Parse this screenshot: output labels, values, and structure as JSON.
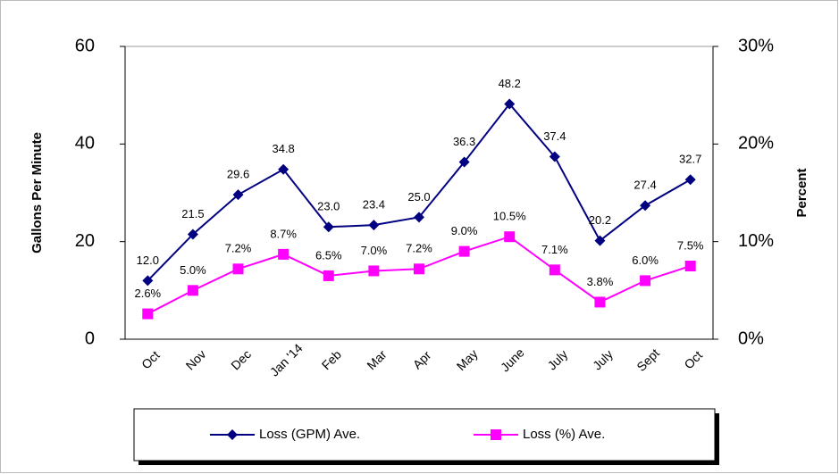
{
  "chart_data": {
    "type": "line",
    "categories": [
      "Oct",
      "Nov",
      "Dec",
      "Jan '14",
      "Feb",
      "Mar",
      "Apr",
      "May",
      "June",
      "July",
      "July",
      "Sept",
      "Oct"
    ],
    "y_label": "Gallons Per Minute",
    "y2_label": "Percent",
    "ylim": [
      0,
      60
    ],
    "yticks": [
      0,
      20,
      40,
      60
    ],
    "y2lim": [
      0,
      30
    ],
    "y2ticks": [
      {
        "value": 0,
        "label": "0%"
      },
      {
        "value": 10,
        "label": "10%"
      },
      {
        "value": 20,
        "label": "20%"
      },
      {
        "value": 30,
        "label": "30%"
      }
    ],
    "series": [
      {
        "name": "Loss (GPM) Ave.",
        "color": "#000080",
        "marker": "diamond",
        "values": [
          12.0,
          21.5,
          29.6,
          34.8,
          23.0,
          23.4,
          25.0,
          36.3,
          48.2,
          37.4,
          20.2,
          27.4,
          32.7
        ],
        "value_labels": [
          "12.0",
          "21.5",
          "29.6",
          "34.8",
          "23.0",
          "23.4",
          "25.0",
          "36.3",
          "48.2",
          "37.4",
          "20.2",
          "27.4",
          "32.7"
        ]
      },
      {
        "name": "Loss (%) Ave.",
        "color": "#FF00FF",
        "marker": "square",
        "axis": "y2",
        "values": [
          2.6,
          5.0,
          7.2,
          8.7,
          6.5,
          7.0,
          7.2,
          9.0,
          10.5,
          7.1,
          3.8,
          6.0,
          7.5
        ],
        "value_labels": [
          "2.6%",
          "5.0%",
          "7.2%",
          "8.7%",
          "6.5%",
          "7.0%",
          "7.2%",
          "9.0%",
          "10.5%",
          "7.1%",
          "3.8%",
          "6.0%",
          "7.5%"
        ]
      }
    ]
  }
}
